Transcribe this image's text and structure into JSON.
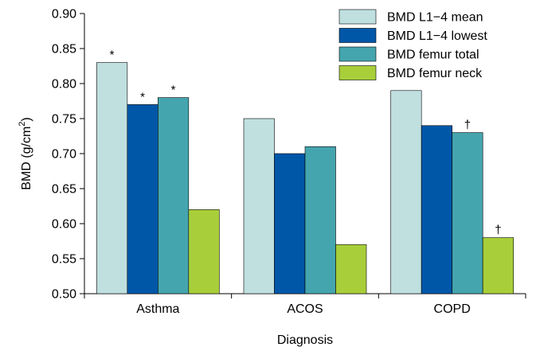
{
  "chart_data": {
    "type": "bar",
    "title": "",
    "xlabel": "Diagnosis",
    "ylabel": "BMD (g/cm",
    "ylabel_superscript": "2",
    "ylabel_close": ")",
    "ylim": [
      0.5,
      0.9
    ],
    "yticks": [
      "0.50",
      "0.55",
      "0.60",
      "0.65",
      "0.70",
      "0.75",
      "0.80",
      "0.85",
      "0.90"
    ],
    "categories": [
      "Asthma",
      "ACOS",
      "COPD"
    ],
    "legend_position": "top-right",
    "grid": false,
    "series": [
      {
        "name": "BMD L1−4 mean",
        "color": "#c0e0e0",
        "values": [
          0.83,
          0.75,
          0.79
        ],
        "annotations": [
          "*",
          "",
          ""
        ]
      },
      {
        "name": "BMD L1−4 lowest",
        "color": "#0057a8",
        "values": [
          0.77,
          0.7,
          0.74
        ],
        "annotations": [
          "*",
          "",
          ""
        ]
      },
      {
        "name": "BMD femur total",
        "color": "#45a5ae",
        "values": [
          0.78,
          0.71,
          0.73
        ],
        "annotations": [
          "*",
          "",
          "†"
        ]
      },
      {
        "name": "BMD femur neck",
        "color": "#a8cf3a",
        "values": [
          0.62,
          0.57,
          0.58
        ],
        "annotations": [
          "",
          "",
          "†"
        ]
      }
    ]
  }
}
